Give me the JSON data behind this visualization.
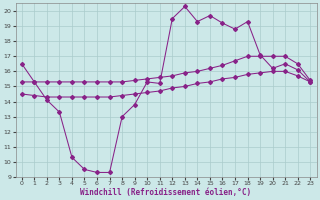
{
  "xlabel": "Windchill (Refroidissement éolien,°C)",
  "bg_color": "#cce8e8",
  "grid_color": "#aacccc",
  "line_color": "#882288",
  "xlim": [
    -0.5,
    23.5
  ],
  "ylim": [
    9,
    20.5
  ],
  "xticks": [
    0,
    1,
    2,
    3,
    4,
    5,
    6,
    7,
    8,
    9,
    10,
    11,
    12,
    13,
    14,
    15,
    16,
    17,
    18,
    19,
    20,
    21,
    22,
    23
  ],
  "yticks": [
    9,
    10,
    11,
    12,
    13,
    14,
    15,
    16,
    17,
    18,
    19,
    20
  ],
  "line1_x": [
    0,
    1,
    2,
    3,
    4,
    5,
    6,
    7,
    8,
    9,
    10,
    11,
    12,
    13,
    14,
    15,
    16,
    17,
    18,
    19,
    20,
    21,
    22,
    23
  ],
  "line1_y": [
    16.5,
    15.3,
    14.1,
    13.3,
    10.3,
    9.5,
    9.3,
    9.3,
    13.0,
    13.8,
    15.3,
    15.2,
    19.5,
    20.3,
    19.3,
    19.7,
    19.2,
    18.8,
    19.3,
    17.1,
    16.2,
    16.5,
    16.1,
    15.3
  ],
  "line2_x": [
    0,
    1,
    2,
    3,
    4,
    5,
    6,
    7,
    8,
    9,
    10,
    11,
    12,
    13,
    14,
    15,
    16,
    17,
    18,
    19,
    20,
    21,
    22,
    23
  ],
  "line2_y": [
    15.3,
    15.3,
    15.3,
    15.3,
    15.3,
    15.3,
    15.3,
    15.3,
    15.3,
    15.4,
    15.5,
    15.6,
    15.7,
    15.9,
    16.0,
    16.2,
    16.4,
    16.7,
    17.0,
    17.0,
    17.0,
    17.0,
    16.5,
    15.4
  ],
  "line3_x": [
    0,
    1,
    2,
    3,
    4,
    5,
    6,
    7,
    8,
    9,
    10,
    11,
    12,
    13,
    14,
    15,
    16,
    17,
    18,
    19,
    20,
    21,
    22,
    23
  ],
  "line3_y": [
    14.5,
    14.4,
    14.3,
    14.3,
    14.3,
    14.3,
    14.3,
    14.3,
    14.4,
    14.5,
    14.6,
    14.7,
    14.9,
    15.0,
    15.2,
    15.3,
    15.5,
    15.6,
    15.8,
    15.9,
    16.0,
    16.0,
    15.7,
    15.3
  ]
}
